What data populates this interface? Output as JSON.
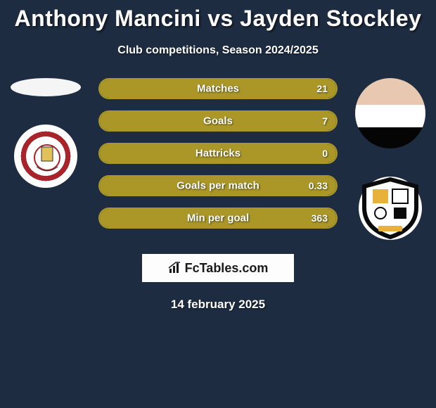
{
  "title": "Anthony Mancini vs Jayden Stockley",
  "subtitle": "Club competitions, Season 2024/2025",
  "date": "14 february 2025",
  "branding_text": "FcTables.com",
  "colors": {
    "background": "#1d2c41",
    "bar_fill": "#aa9728",
    "bar_border": "#aa9728",
    "text": "#ffffff",
    "branding_bg": "#fdfdfd",
    "branding_text": "#1a1a1a"
  },
  "stats": [
    {
      "label": "Matches",
      "left_value": "",
      "right_value": "21",
      "left_pct": 0,
      "right_pct": 100
    },
    {
      "label": "Goals",
      "left_value": "",
      "right_value": "7",
      "left_pct": 0,
      "right_pct": 100
    },
    {
      "label": "Hattricks",
      "left_value": "",
      "right_value": "0",
      "left_pct": 0,
      "right_pct": 100
    },
    {
      "label": "Goals per match",
      "left_value": "",
      "right_value": "0.33",
      "left_pct": 0,
      "right_pct": 100
    },
    {
      "label": "Min per goal",
      "left_value": "",
      "right_value": "363",
      "left_pct": 0,
      "right_pct": 100
    }
  ],
  "players": {
    "left": {
      "name": "Anthony Mancini",
      "club": "Accrington Stanley"
    },
    "right": {
      "name": "Jayden Stockley",
      "club": "Port Vale"
    }
  }
}
